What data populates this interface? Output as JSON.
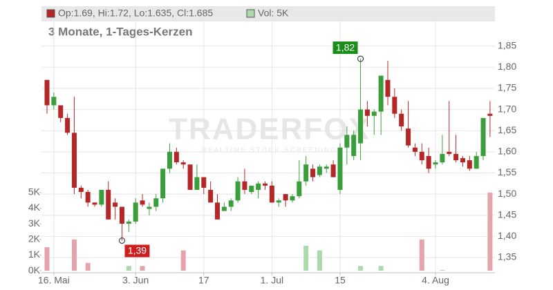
{
  "chart_data": {
    "type": "candlestick",
    "subtitle": "3 Monate, 1-Tages-Kerzen",
    "legend": {
      "price": "Op:1.69, Hi:1.72, Lo:1.635, Cl:1.685",
      "volume": "Vol: 5K"
    },
    "watermark": {
      "brand": "TRADERFOX",
      "tagline": "REALTIME STOCK SCREENING"
    },
    "categories": [
      null,
      "16. Mai",
      null,
      null,
      null,
      null,
      null,
      null,
      null,
      null,
      null,
      null,
      null,
      "3. Jun",
      null,
      null,
      null,
      null,
      null,
      null,
      null,
      null,
      null,
      "17",
      null,
      null,
      null,
      null,
      null,
      null,
      null,
      null,
      null,
      "1. Jul",
      null,
      null,
      null,
      null,
      null,
      null,
      null,
      null,
      null,
      "15",
      null,
      null,
      null,
      null,
      null,
      null,
      null,
      null,
      null,
      null,
      null,
      null,
      null,
      "4. Aug",
      null,
      null,
      null,
      null,
      null,
      null,
      null,
      null
    ],
    "open": [
      1.77,
      1.71,
      1.71,
      1.68,
      1.645,
      1.515,
      1.505,
      1.48,
      1.475,
      1.51,
      1.48,
      1.47,
      1.43,
      1.435,
      1.485,
      1.465,
      1.47,
      1.49,
      1.56,
      1.6,
      1.575,
      1.57,
      1.51,
      1.54,
      1.51,
      1.48,
      1.46,
      1.47,
      1.485,
      1.53,
      1.505,
      1.51,
      1.525,
      1.52,
      1.48,
      1.5,
      1.485,
      1.495,
      1.53,
      1.56,
      1.545,
      1.56,
      1.57,
      1.51,
      1.61,
      1.59,
      1.62,
      1.7,
      1.685,
      1.695,
      1.77,
      1.73,
      1.69,
      1.655,
      1.61,
      1.6,
      1.59,
      1.57,
      1.575,
      1.6,
      1.595,
      1.585,
      1.58,
      1.56,
      1.59,
      1.69
    ],
    "high": [
      1.77,
      1.74,
      1.71,
      1.69,
      1.73,
      1.52,
      1.51,
      1.48,
      1.51,
      1.53,
      1.49,
      1.47,
      1.44,
      1.49,
      1.5,
      1.48,
      1.5,
      1.56,
      1.62,
      1.61,
      1.58,
      1.57,
      1.57,
      1.54,
      1.53,
      1.5,
      1.48,
      1.49,
      1.54,
      1.56,
      1.52,
      1.53,
      1.53,
      1.53,
      1.49,
      1.5,
      1.5,
      1.58,
      1.59,
      1.57,
      1.57,
      1.57,
      1.58,
      1.62,
      1.66,
      1.65,
      1.82,
      1.72,
      1.7,
      1.78,
      1.815,
      1.75,
      1.7,
      1.72,
      1.62,
      1.62,
      1.61,
      1.58,
      1.64,
      1.72,
      1.64,
      1.59,
      1.59,
      1.6,
      1.68,
      1.72
    ],
    "low": [
      1.69,
      1.7,
      1.67,
      1.64,
      1.5,
      1.49,
      1.47,
      1.47,
      1.47,
      1.44,
      1.44,
      1.39,
      1.41,
      1.43,
      1.47,
      1.45,
      1.46,
      1.48,
      1.55,
      1.57,
      1.56,
      1.51,
      1.51,
      1.5,
      1.48,
      1.44,
      1.46,
      1.46,
      1.48,
      1.5,
      1.5,
      1.49,
      1.51,
      1.48,
      1.47,
      1.47,
      1.48,
      1.49,
      1.52,
      1.53,
      1.54,
      1.55,
      1.54,
      1.5,
      1.57,
      1.58,
      1.58,
      1.66,
      1.64,
      1.64,
      1.71,
      1.68,
      1.65,
      1.61,
      1.59,
      1.57,
      1.55,
      1.56,
      1.57,
      1.59,
      1.575,
      1.565,
      1.555,
      1.56,
      1.58,
      1.635
    ],
    "close": [
      1.71,
      1.73,
      1.68,
      1.645,
      1.515,
      1.505,
      1.48,
      1.475,
      1.51,
      1.44,
      1.47,
      1.43,
      1.435,
      1.48,
      1.475,
      1.47,
      1.49,
      1.56,
      1.6,
      1.575,
      1.57,
      1.51,
      1.54,
      1.515,
      1.48,
      1.44,
      1.47,
      1.485,
      1.53,
      1.51,
      1.52,
      1.525,
      1.52,
      1.48,
      1.485,
      1.485,
      1.495,
      1.53,
      1.57,
      1.54,
      1.565,
      1.565,
      1.54,
      1.61,
      1.64,
      1.64,
      1.7,
      1.685,
      1.695,
      1.78,
      1.73,
      1.69,
      1.66,
      1.615,
      1.6,
      1.58,
      1.56,
      1.575,
      1.595,
      1.595,
      1.58,
      1.575,
      1.56,
      1.59,
      1.68,
      1.685
    ],
    "volume": [
      1.5,
      0,
      0,
      0,
      2.0,
      0,
      0.5,
      0,
      0,
      0,
      0,
      0,
      0.3,
      0,
      0.3,
      0,
      0,
      0,
      0,
      0,
      1.3,
      0,
      0,
      0,
      0,
      0,
      0,
      0,
      0,
      0,
      0,
      0,
      0,
      0,
      0,
      0,
      0,
      0,
      1.6,
      0,
      1.3,
      0,
      0,
      0,
      0,
      0,
      0.3,
      0,
      0,
      0.3,
      0,
      0,
      0,
      0,
      0,
      2.0,
      0,
      0,
      0.05,
      0,
      0,
      0,
      0,
      0,
      0,
      5.0
    ],
    "up_color": "#3a9e3a",
    "down_color": "#b52626",
    "volume_up_color": "#acd9ac",
    "volume_down_color": "#e6a3ab",
    "high_label": "1,82",
    "low_label": "1,39",
    "ylim": [
      1.314,
      1.91
    ],
    "yticks": [
      {
        "value": 1.35,
        "label": "1,35"
      },
      {
        "value": 1.4,
        "label": "1,40"
      },
      {
        "value": 1.45,
        "label": "1,45"
      },
      {
        "value": 1.5,
        "label": "1,50"
      },
      {
        "value": 1.55,
        "label": "1,55"
      },
      {
        "value": 1.6,
        "label": "1,60"
      },
      {
        "value": 1.65,
        "label": "1,65"
      },
      {
        "value": 1.7,
        "label": "1,70"
      },
      {
        "value": 1.75,
        "label": "1,75"
      },
      {
        "value": 1.8,
        "label": "1,80"
      },
      {
        "value": 1.85,
        "label": "1,85"
      }
    ],
    "y2lim": [
      -0.13,
      16
    ],
    "y2ticks": [
      {
        "value": 0,
        "label": "0K"
      },
      {
        "value": 1,
        "label": "1K"
      },
      {
        "value": 2,
        "label": "2K"
      },
      {
        "value": 3,
        "label": "3K"
      },
      {
        "value": 4,
        "label": "4K"
      },
      {
        "value": 5,
        "label": "5K"
      }
    ],
    "grid": true
  }
}
